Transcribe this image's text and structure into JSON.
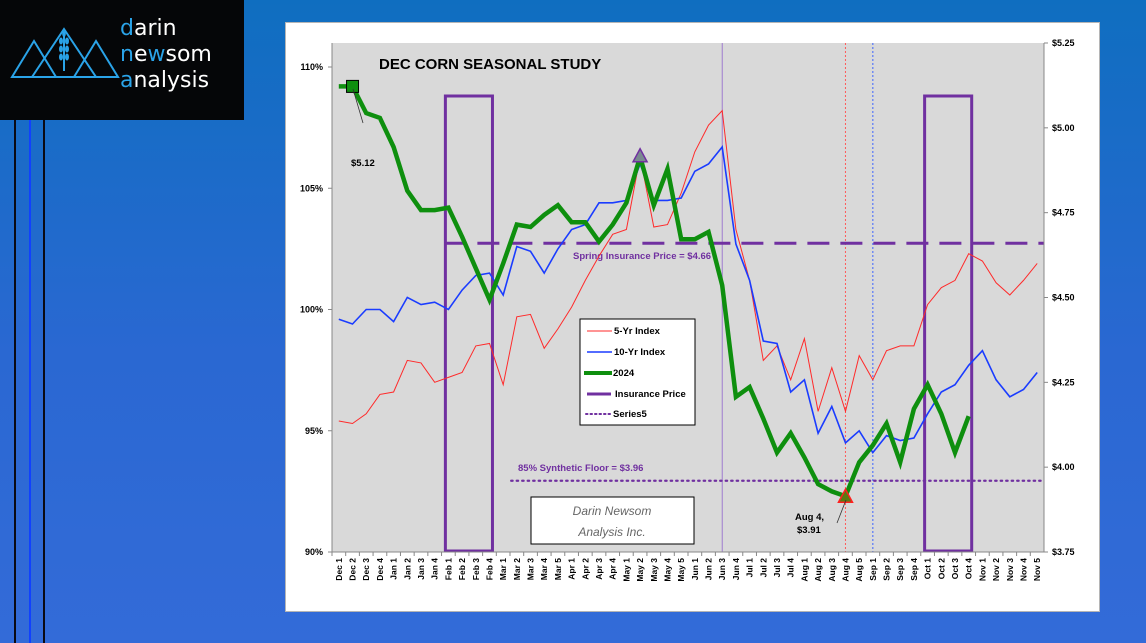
{
  "logo": {
    "line1_accent": "d",
    "line1_rest": "arin",
    "line2_accent": "n",
    "line2_mid": "e",
    "line2_accent2": "w",
    "line2_rest": "som",
    "line3_accent": "a",
    "line3_rest": "nalysis",
    "brand_color": "#2aa3e8"
  },
  "chart_data": {
    "type": "line",
    "title": "DEC CORN SEASONAL STUDY",
    "categories": [
      "Dec 1",
      "Dec 2",
      "Dec 3",
      "Dec 4",
      "Jan 1",
      "Jan 2",
      "Jan 3",
      "Jan 4",
      "Feb 1",
      "Feb 2",
      "Feb 3",
      "Feb 4",
      "Mar 1",
      "Mar 2",
      "Mar 3",
      "Mar 4",
      "Mar 5",
      "Apr 1",
      "Apr 2",
      "Apr 3",
      "Apr 4",
      "May 1",
      "May 2",
      "May 3",
      "May 4",
      "May 5",
      "Jun 1",
      "Jun 2",
      "Jun 3",
      "Jun 4",
      "Jul 1",
      "Jul 2",
      "Jul 3",
      "Jul 4",
      "Aug 1",
      "Aug 2",
      "Aug 3",
      "Aug 4",
      "Aug 5",
      "Sep 1",
      "Sep 2",
      "Sep 3",
      "Sep 4",
      "Oct 1",
      "Oct 2",
      "Oct 3",
      "Oct 4",
      "Nov 1",
      "Nov 2",
      "Nov 3",
      "Nov 4",
      "Nov 5"
    ],
    "left_axis": {
      "ticks": [
        "90%",
        "95%",
        "100%",
        "105%",
        "110%"
      ],
      "tick_values": [
        90,
        95,
        100,
        105,
        110
      ],
      "ylim": [
        90,
        111.5
      ]
    },
    "right_axis": {
      "ticks": [
        "$3.75",
        "$4.00",
        "$4.25",
        "$4.50",
        "$4.75",
        "$5.00",
        "$5.25"
      ],
      "tick_values": [
        3.75,
        4.0,
        4.25,
        4.5,
        4.75,
        5.0,
        5.25
      ],
      "ylim": [
        3.75,
        5.25
      ]
    },
    "series": [
      {
        "name": "5-Yr Index",
        "color": "#ff2a2a",
        "width": 1,
        "values": [
          95.4,
          95.3,
          95.7,
          96.5,
          96.6,
          97.9,
          97.8,
          97.0,
          97.2,
          97.4,
          98.5,
          98.6,
          96.9,
          99.7,
          99.8,
          98.4,
          99.2,
          100.1,
          101.2,
          102.2,
          103.1,
          103.3,
          106.3,
          103.4,
          103.5,
          104.8,
          106.5,
          107.6,
          108.2,
          103.3,
          101.2,
          97.9,
          98.5,
          97.1,
          98.8,
          95.8,
          97.6,
          95.8,
          98.1,
          97.1,
          98.3,
          98.5,
          98.5,
          100.2,
          100.9,
          101.2,
          102.3,
          102.0,
          101.1,
          100.6,
          101.2,
          101.9
        ]
      },
      {
        "name": "10-Yr Index",
        "color": "#1a3cff",
        "width": 1.6,
        "values": [
          99.6,
          99.4,
          100.0,
          100.0,
          99.5,
          100.5,
          100.2,
          100.3,
          100.0,
          100.8,
          101.4,
          101.5,
          100.6,
          102.6,
          102.4,
          101.5,
          102.5,
          103.3,
          103.5,
          104.4,
          104.4,
          104.5,
          106.0,
          104.5,
          104.5,
          104.6,
          105.7,
          106.0,
          106.7,
          102.7,
          101.2,
          98.7,
          98.6,
          96.6,
          97.1,
          94.9,
          96.0,
          94.5,
          95.0,
          94.1,
          94.8,
          94.6,
          94.7,
          95.7,
          96.6,
          96.9,
          97.7,
          98.3,
          97.1,
          96.4,
          96.7,
          97.4
        ]
      },
      {
        "name": "2024",
        "color": "#0e8f0e",
        "width": 4.5,
        "values": [
          109.2,
          109.2,
          108.1,
          107.9,
          106.7,
          104.9,
          104.1,
          104.1,
          104.2,
          103.0,
          101.7,
          100.4,
          101.9,
          103.5,
          103.4,
          103.9,
          104.3,
          103.6,
          103.6,
          102.8,
          103.5,
          104.4,
          106.3,
          104.3,
          105.8,
          102.9,
          102.9,
          103.2,
          101.0,
          96.4,
          96.8,
          95.5,
          94.1,
          94.9,
          93.9,
          92.8,
          92.5,
          92.3,
          93.7,
          94.4,
          95.3,
          93.7,
          95.9,
          96.9,
          95.7,
          94.1,
          95.6,
          null,
          null,
          null,
          null,
          null
        ]
      },
      {
        "name": "Insurance Price",
        "color": "#7030a0",
        "price": 4.66
      },
      {
        "name": "Series5",
        "color": "#7030a0",
        "price": 3.96
      }
    ],
    "annotations": {
      "start_marker": {
        "category": "Dec 2",
        "label": "$5.12"
      },
      "peak_marker": {
        "category": "May 2"
      },
      "low_marker": {
        "category": "Aug 4",
        "label_line1": "Aug 4,",
        "label_line2": "$3.91"
      },
      "insurance_label": "Spring Insurance Price = $4.66",
      "floor_label": "85% Synthetic Floor = $3.96",
      "watermark_line1": "Darin Newsom",
      "watermark_line2": "Analysis Inc.",
      "vertical_lines": [
        {
          "category": "Jun 3",
          "color": "#9e7bd0",
          "style": "solid"
        },
        {
          "category": "Aug 4",
          "color": "#ff5a5a",
          "style": "dotted"
        },
        {
          "category": "Sep 1",
          "color": "#3c64ff",
          "style": "dotted"
        }
      ],
      "boxes": [
        {
          "from": "Feb 1",
          "to": "Feb 4",
          "color": "#7030a0"
        },
        {
          "from": "Oct 1",
          "to": "Oct 4",
          "color": "#7030a0"
        }
      ]
    },
    "legend_position": "center",
    "grid": false
  }
}
